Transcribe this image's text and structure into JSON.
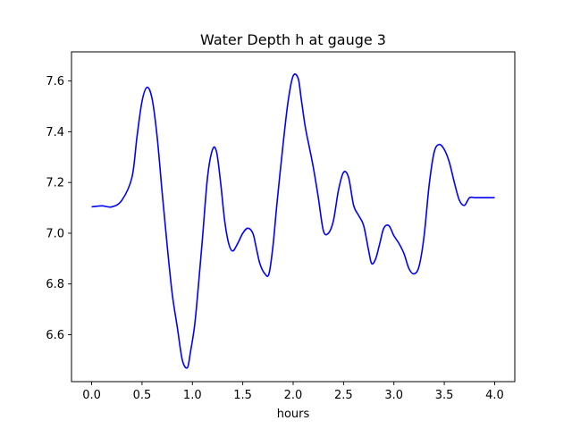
{
  "chart_data": {
    "type": "line",
    "title": "Water Depth h at gauge 3",
    "xlabel": "hours",
    "ylabel": "",
    "xlim": [
      -0.2,
      4.2
    ],
    "ylim": [
      6.415,
      7.715
    ],
    "xticks": [
      0.0,
      0.5,
      1.0,
      1.5,
      2.0,
      2.5,
      3.0,
      3.5,
      4.0
    ],
    "xtick_labels": [
      "0.0",
      "0.5",
      "1.0",
      "1.5",
      "2.0",
      "2.5",
      "3.0",
      "3.5",
      "4.0"
    ],
    "yticks": [
      6.6,
      6.8,
      7.0,
      7.2,
      7.4,
      7.6
    ],
    "ytick_labels": [
      "6.6",
      "6.8",
      "7.0",
      "7.2",
      "7.4",
      "7.6"
    ],
    "grid": false,
    "line_color": "#0000ff",
    "series": [
      {
        "x": [
          0.0,
          0.1,
          0.2,
          0.3,
          0.4,
          0.45,
          0.5,
          0.55,
          0.6,
          0.65,
          0.7,
          0.75,
          0.8,
          0.85,
          0.9,
          0.95,
          0.98,
          1.02,
          1.05,
          1.1,
          1.15,
          1.2,
          1.24,
          1.28,
          1.32,
          1.36,
          1.4,
          1.45,
          1.5,
          1.55,
          1.6,
          1.63,
          1.67,
          1.72,
          1.76,
          1.8,
          1.84,
          1.9,
          1.95,
          2.0,
          2.05,
          2.08,
          2.12,
          2.16,
          2.2,
          2.25,
          2.3,
          2.35,
          2.4,
          2.45,
          2.5,
          2.55,
          2.6,
          2.65,
          2.7,
          2.75,
          2.78,
          2.82,
          2.86,
          2.9,
          2.95,
          3.0,
          3.05,
          3.1,
          3.15,
          3.2,
          3.25,
          3.3,
          3.35,
          3.4,
          3.45,
          3.5,
          3.55,
          3.6,
          3.65,
          3.7,
          3.75,
          3.8,
          3.85,
          3.9,
          3.95,
          4.0
        ],
        "y": [
          7.104,
          7.108,
          7.104,
          7.13,
          7.22,
          7.38,
          7.52,
          7.575,
          7.53,
          7.38,
          7.16,
          6.95,
          6.76,
          6.63,
          6.5,
          6.47,
          6.53,
          6.63,
          6.75,
          6.98,
          7.22,
          7.33,
          7.32,
          7.2,
          7.05,
          6.96,
          6.93,
          6.96,
          7.0,
          7.02,
          7.0,
          6.95,
          6.88,
          6.84,
          6.84,
          6.95,
          7.12,
          7.35,
          7.52,
          7.62,
          7.61,
          7.53,
          7.42,
          7.34,
          7.26,
          7.14,
          7.01,
          7.0,
          7.05,
          7.17,
          7.24,
          7.22,
          7.11,
          7.07,
          7.03,
          6.93,
          6.88,
          6.9,
          6.96,
          7.02,
          7.03,
          6.99,
          6.96,
          6.92,
          6.86,
          6.84,
          6.87,
          6.99,
          7.19,
          7.32,
          7.35,
          7.33,
          7.28,
          7.2,
          7.13,
          7.11,
          7.14,
          7.14,
          7.14,
          7.14,
          7.14,
          7.14
        ]
      }
    ]
  }
}
